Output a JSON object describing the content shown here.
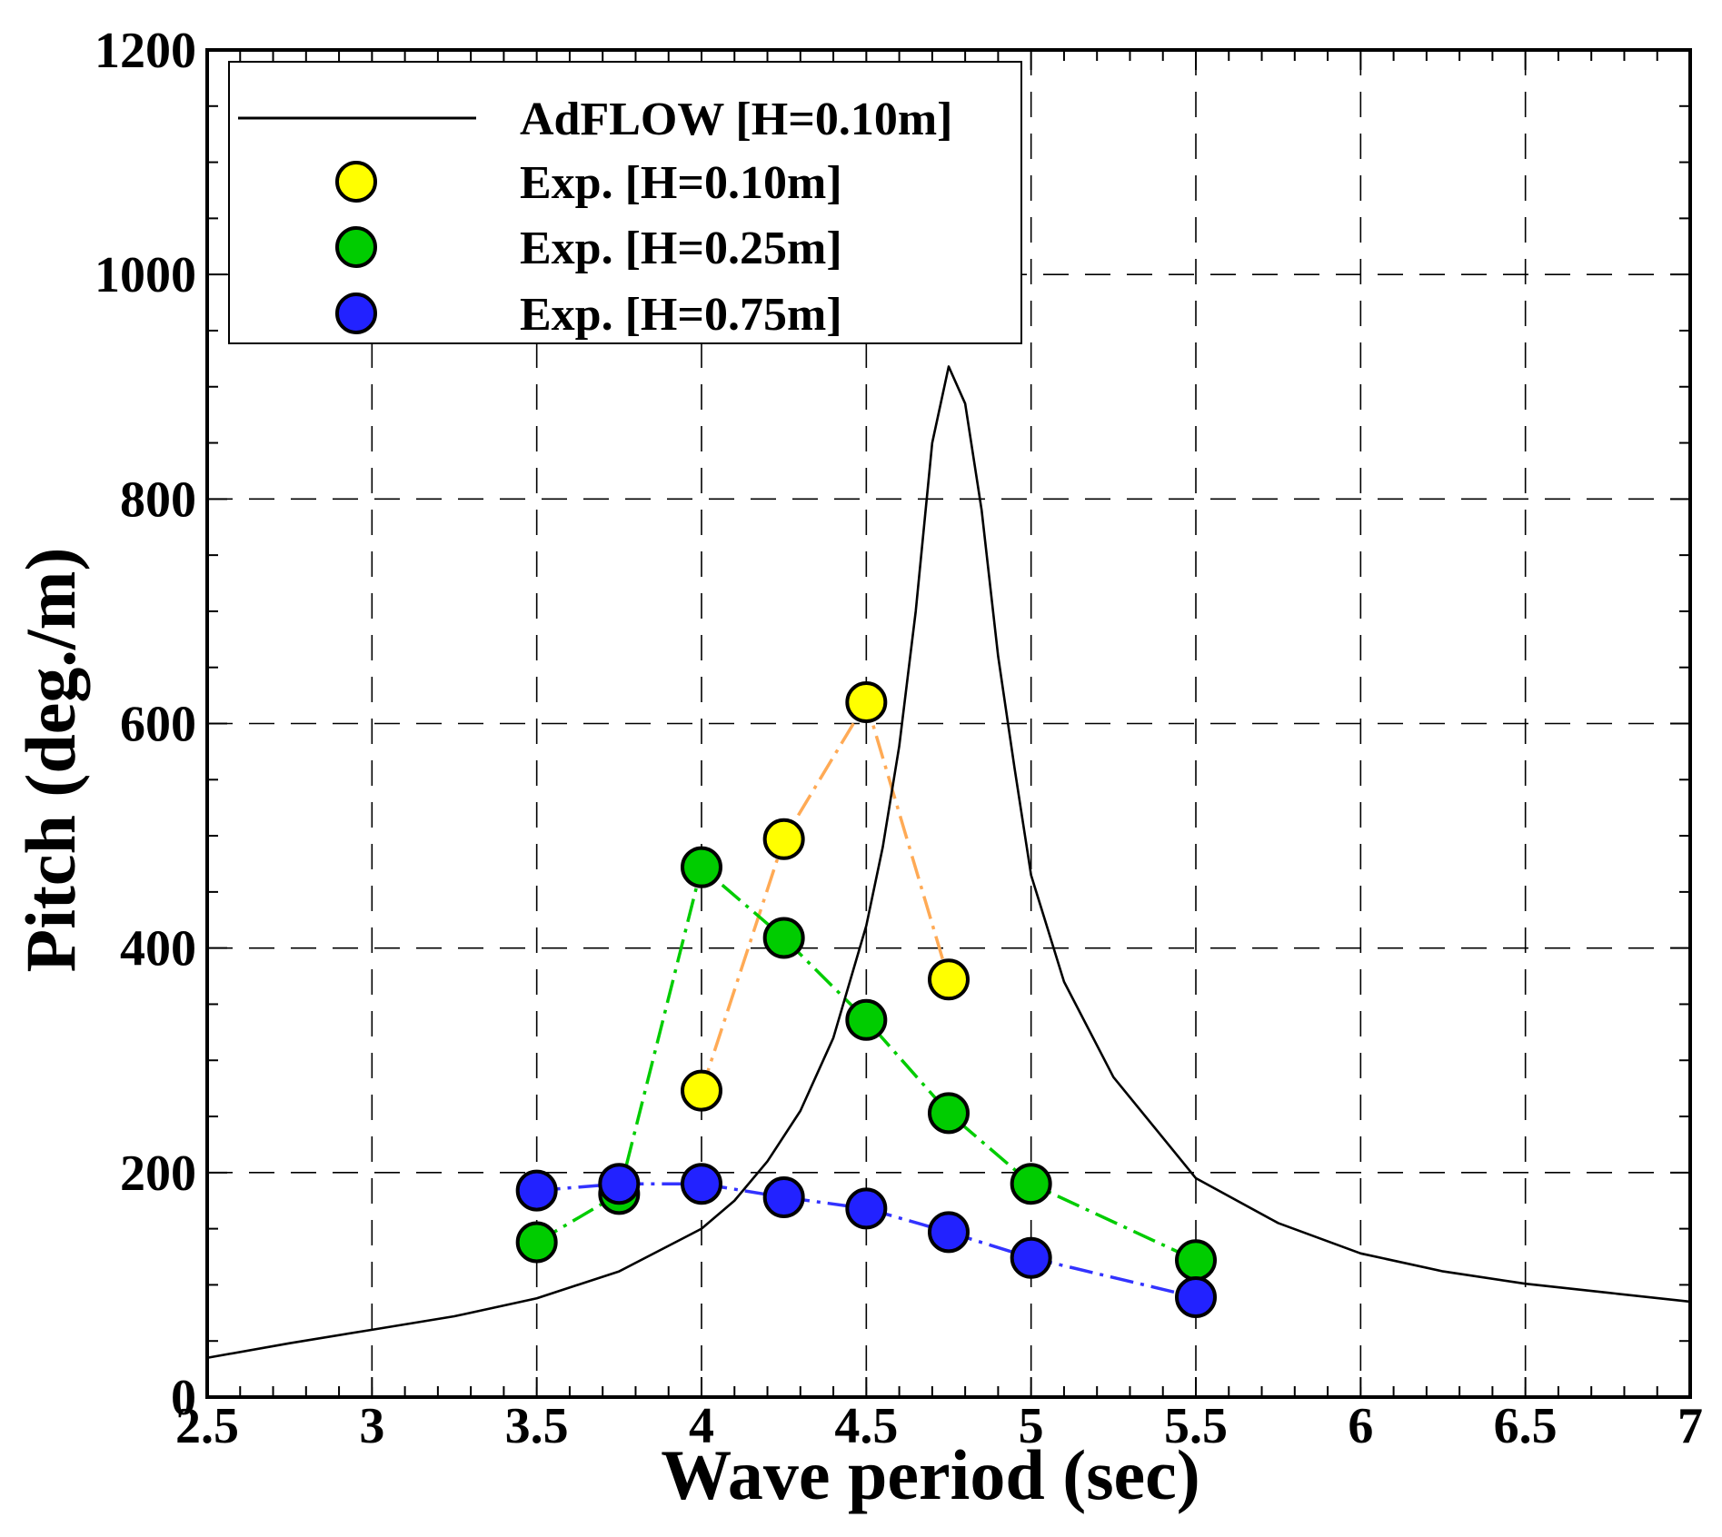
{
  "chart_data": {
    "type": "line",
    "title": "",
    "xlabel": "Wave period (sec)",
    "ylabel": "Pitch (deg./m)",
    "xlim": [
      2.5,
      7
    ],
    "ylim": [
      0,
      1200
    ],
    "x_ticks": [
      2.5,
      3,
      3.5,
      4,
      4.5,
      5,
      5.5,
      6,
      6.5,
      7
    ],
    "x_tick_labels": [
      "2.5",
      "3",
      "3.5",
      "4",
      "4.5",
      "5",
      "5.5",
      "6",
      "6.5",
      "7"
    ],
    "y_ticks": [
      0,
      200,
      400,
      600,
      800,
      1000,
      1200
    ],
    "y_tick_labels": [
      "0",
      "200",
      "400",
      "600",
      "800",
      "1000",
      "1200"
    ],
    "grid": true,
    "legend_position": "top-left",
    "series": [
      {
        "name": "AdFLOW [H=0.10m]",
        "style": "line",
        "color": "#000000",
        "x": [
          2.5,
          2.75,
          3.0,
          3.25,
          3.5,
          3.75,
          4.0,
          4.1,
          4.2,
          4.3,
          4.4,
          4.5,
          4.55,
          4.6,
          4.65,
          4.7,
          4.75,
          4.8,
          4.85,
          4.9,
          4.95,
          5.0,
          5.1,
          5.25,
          5.5,
          5.75,
          6.0,
          6.25,
          6.5,
          6.75,
          7.0
        ],
        "values": [
          35,
          48,
          60,
          72,
          88,
          112,
          150,
          175,
          210,
          255,
          320,
          420,
          490,
          580,
          700,
          850,
          918,
          885,
          790,
          660,
          560,
          465,
          370,
          285,
          195,
          155,
          128,
          112,
          101,
          93,
          85
        ]
      },
      {
        "name": "Exp. [H=0.10m]",
        "style": "marker-dashdot",
        "color": "#ffff00",
        "line_color": "#ffaa55",
        "x": [
          4.0,
          4.25,
          4.5,
          4.75
        ],
        "values": [
          273,
          497,
          619,
          372
        ]
      },
      {
        "name": "Exp. [H=0.25m]",
        "style": "marker-dashdot",
        "color": "#00cc00",
        "line_color": "#00cc00",
        "x": [
          3.5,
          3.75,
          4.0,
          4.25,
          4.5,
          4.75,
          5.0,
          5.5
        ],
        "values": [
          138,
          181,
          472,
          409,
          336,
          253,
          190,
          122
        ]
      },
      {
        "name": "Exp. [H=0.75m]",
        "style": "marker-dashdot",
        "color": "#2222ff",
        "line_color": "#3333ff",
        "x": [
          3.5,
          3.75,
          4.0,
          4.25,
          4.5,
          4.75,
          5.0,
          5.5
        ],
        "values": [
          184,
          190,
          190,
          178,
          168,
          147,
          124,
          89
        ]
      }
    ]
  }
}
